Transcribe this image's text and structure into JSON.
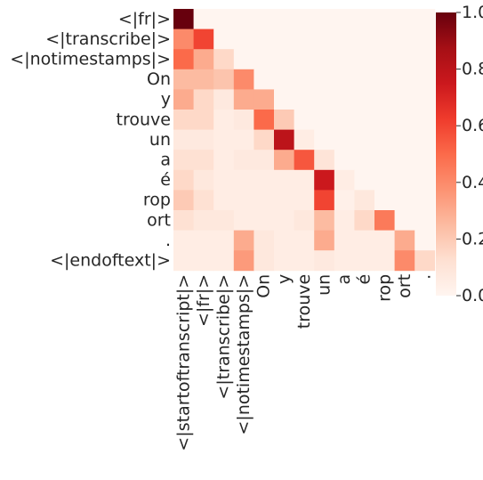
{
  "chart_data": {
    "type": "heatmap",
    "colormap": "Reds",
    "vmin": 0.0,
    "vmax": 1.0,
    "x_tick_labels": [
      "<|startoftranscript|>",
      "<|fr|>",
      "<|transcribe|>",
      "<|notimestamps|>",
      "On",
      "y",
      "trouve",
      "un",
      "a",
      "é",
      "rop",
      "ort",
      "."
    ],
    "y_tick_labels": [
      "<|fr|>",
      "<|transcribe|>",
      "<|notimestamps|>",
      "On",
      "y",
      "trouve",
      "un",
      "a",
      "é",
      "rop",
      "ort",
      ".",
      "<|endoftext|>"
    ],
    "colorbar_ticks": [
      "0.0",
      "0.2",
      "0.4",
      "0.6",
      "0.8",
      "1.0"
    ],
    "colorbar_tick_values": [
      0.0,
      0.2,
      0.4,
      0.6,
      0.8,
      1.0
    ],
    "values": [
      [
        1.0,
        0.0,
        0.0,
        0.0,
        0.0,
        0.0,
        0.0,
        0.0,
        0.0,
        0.0,
        0.0,
        0.0,
        0.0
      ],
      [
        0.4,
        0.6,
        0.0,
        0.0,
        0.0,
        0.0,
        0.0,
        0.0,
        0.0,
        0.0,
        0.0,
        0.0,
        0.0
      ],
      [
        0.5,
        0.3,
        0.15,
        0.0,
        0.0,
        0.0,
        0.0,
        0.0,
        0.0,
        0.0,
        0.0,
        0.0,
        0.0
      ],
      [
        0.25,
        0.25,
        0.22,
        0.4,
        0.0,
        0.0,
        0.0,
        0.0,
        0.0,
        0.0,
        0.0,
        0.0,
        0.0
      ],
      [
        0.3,
        0.15,
        0.07,
        0.3,
        0.3,
        0.0,
        0.0,
        0.0,
        0.0,
        0.0,
        0.0,
        0.0,
        0.0
      ],
      [
        0.15,
        0.15,
        0.05,
        0.07,
        0.5,
        0.2,
        0.0,
        0.0,
        0.0,
        0.0,
        0.0,
        0.0,
        0.0
      ],
      [
        0.07,
        0.07,
        0.05,
        0.05,
        0.15,
        0.8,
        0.05,
        0.0,
        0.0,
        0.0,
        0.0,
        0.0,
        0.0
      ],
      [
        0.12,
        0.12,
        0.05,
        0.07,
        0.07,
        0.3,
        0.55,
        0.1,
        0.0,
        0.0,
        0.0,
        0.0,
        0.0
      ],
      [
        0.15,
        0.08,
        0.05,
        0.05,
        0.05,
        0.05,
        0.05,
        0.75,
        0.05,
        0.0,
        0.0,
        0.0,
        0.0
      ],
      [
        0.2,
        0.12,
        0.05,
        0.05,
        0.05,
        0.05,
        0.05,
        0.6,
        0.03,
        0.08,
        0.0,
        0.0,
        0.0
      ],
      [
        0.12,
        0.08,
        0.08,
        0.05,
        0.05,
        0.05,
        0.08,
        0.25,
        0.05,
        0.15,
        0.45,
        0.0,
        0.0
      ],
      [
        0.05,
        0.05,
        0.05,
        0.3,
        0.08,
        0.05,
        0.05,
        0.3,
        0.05,
        0.05,
        0.05,
        0.3,
        0.0
      ],
      [
        0.05,
        0.05,
        0.05,
        0.35,
        0.08,
        0.05,
        0.05,
        0.07,
        0.05,
        0.05,
        0.05,
        0.4,
        0.15
      ]
    ]
  }
}
